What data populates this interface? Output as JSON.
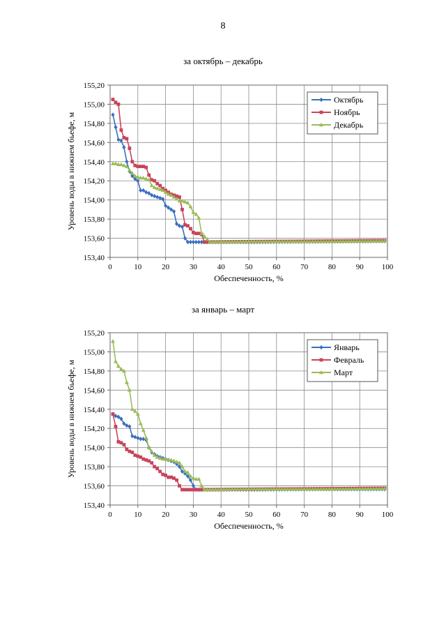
{
  "page": {
    "number": "8"
  },
  "chart_data": [
    {
      "type": "line",
      "title": "за октябрь – декабрь",
      "xlabel": "Обеспеченность, %",
      "ylabel": "Уровень воды в нижнем бьефе, м",
      "xlim": [
        0,
        100
      ],
      "ylim": [
        153.4,
        155.2
      ],
      "xticks": [
        "0",
        "10",
        "20",
        "30",
        "40",
        "50",
        "60",
        "70",
        "80",
        "90",
        "100"
      ],
      "yticks": [
        "153,40",
        "153,60",
        "153,80",
        "154,00",
        "154,20",
        "154,40",
        "154,60",
        "154,80",
        "155,00",
        "155,20"
      ],
      "grid": true,
      "legend_position": "top-right",
      "series": [
        {
          "name": "Октябрь",
          "color": "#3a6fbf",
          "marker": "diamond",
          "points": [
            [
              1,
              154.89
            ],
            [
              2,
              154.76
            ],
            [
              3,
              154.63
            ],
            [
              4,
              154.62
            ],
            [
              5,
              154.55
            ],
            [
              6,
              154.4
            ],
            [
              7,
              154.3
            ],
            [
              8,
              154.25
            ],
            [
              9,
              154.22
            ],
            [
              10,
              154.2
            ],
            [
              11,
              154.1
            ],
            [
              12,
              154.1
            ],
            [
              13,
              154.08
            ],
            [
              14,
              154.07
            ],
            [
              15,
              154.05
            ],
            [
              16,
              154.04
            ],
            [
              17,
              154.03
            ],
            [
              18,
              154.02
            ],
            [
              19,
              154.01
            ],
            [
              20,
              153.94
            ],
            [
              21,
              153.92
            ],
            [
              22,
              153.9
            ],
            [
              23,
              153.88
            ],
            [
              24,
              153.75
            ],
            [
              25,
              153.73
            ],
            [
              26,
              153.72
            ],
            [
              27,
              153.6
            ],
            [
              28,
              153.56
            ],
            [
              29,
              153.56
            ],
            [
              30,
              153.56
            ],
            [
              31,
              153.56
            ],
            [
              32,
              153.56
            ],
            [
              33,
              153.56
            ],
            [
              34,
              153.56
            ],
            [
              35,
              153.56
            ],
            [
              50,
              153.56
            ],
            [
              75,
              153.565
            ],
            [
              99,
              153.57
            ]
          ]
        },
        {
          "name": "Ноябрь",
          "color": "#c8445a",
          "marker": "square",
          "points": [
            [
              1,
              155.05
            ],
            [
              2,
              155.02
            ],
            [
              3,
              155.0
            ],
            [
              4,
              154.73
            ],
            [
              5,
              154.65
            ],
            [
              6,
              154.64
            ],
            [
              7,
              154.54
            ],
            [
              8,
              154.4
            ],
            [
              9,
              154.36
            ],
            [
              10,
              154.35
            ],
            [
              11,
              154.35
            ],
            [
              12,
              154.35
            ],
            [
              13,
              154.34
            ],
            [
              14,
              154.26
            ],
            [
              15,
              154.21
            ],
            [
              16,
              154.2
            ],
            [
              17,
              154.17
            ],
            [
              18,
              154.15
            ],
            [
              19,
              154.12
            ],
            [
              20,
              154.1
            ],
            [
              21,
              154.08
            ],
            [
              22,
              154.06
            ],
            [
              23,
              154.05
            ],
            [
              24,
              154.04
            ],
            [
              25,
              154.03
            ],
            [
              26,
              153.9
            ],
            [
              27,
              153.74
            ],
            [
              28,
              153.73
            ],
            [
              29,
              153.7
            ],
            [
              30,
              153.66
            ],
            [
              31,
              153.65
            ],
            [
              32,
              153.65
            ],
            [
              33,
              153.64
            ],
            [
              34,
              153.56
            ],
            [
              35,
              153.56
            ],
            [
              50,
              153.565
            ],
            [
              75,
              153.57
            ],
            [
              99,
              153.575
            ]
          ]
        },
        {
          "name": "Декабрь",
          "color": "#9bbb59",
          "marker": "triangle",
          "points": [
            [
              1,
              154.38
            ],
            [
              2,
              154.38
            ],
            [
              3,
              154.37
            ],
            [
              4,
              154.37
            ],
            [
              5,
              154.36
            ],
            [
              6,
              154.35
            ],
            [
              7,
              154.31
            ],
            [
              8,
              154.28
            ],
            [
              9,
              154.25
            ],
            [
              10,
              154.24
            ],
            [
              11,
              154.23
            ],
            [
              12,
              154.23
            ],
            [
              13,
              154.22
            ],
            [
              14,
              154.21
            ],
            [
              15,
              154.15
            ],
            [
              16,
              154.13
            ],
            [
              17,
              154.12
            ],
            [
              18,
              154.11
            ],
            [
              19,
              154.1
            ],
            [
              20,
              154.08
            ],
            [
              21,
              154.06
            ],
            [
              22,
              154.05
            ],
            [
              23,
              154.03
            ],
            [
              24,
              154.01
            ],
            [
              25,
              153.99
            ],
            [
              26,
              153.99
            ],
            [
              27,
              153.98
            ],
            [
              28,
              153.97
            ],
            [
              29,
              153.93
            ],
            [
              30,
              153.87
            ],
            [
              31,
              153.85
            ],
            [
              32,
              153.81
            ],
            [
              33,
              153.65
            ],
            [
              34,
              153.62
            ],
            [
              35,
              153.59
            ],
            [
              36,
              153.56
            ],
            [
              50,
              153.565
            ],
            [
              75,
              153.565
            ],
            [
              99,
              153.57
            ]
          ]
        }
      ]
    },
    {
      "type": "line",
      "title": "за январь – март",
      "xlabel": "Обеспеченность, %",
      "ylabel": "Уровень воды в нижнем бьефе, м",
      "xlim": [
        0,
        100
      ],
      "ylim": [
        153.4,
        155.2
      ],
      "xticks": [
        "0",
        "10",
        "20",
        "30",
        "40",
        "50",
        "60",
        "70",
        "80",
        "90",
        "100"
      ],
      "yticks": [
        "153,40",
        "153,60",
        "153,80",
        "154,00",
        "154,20",
        "154,40",
        "154,60",
        "154,80",
        "155,00",
        "155,20"
      ],
      "grid": true,
      "legend_position": "top-right",
      "series": [
        {
          "name": "Январь",
          "color": "#3a6fbf",
          "marker": "diamond",
          "points": [
            [
              1,
              154.35
            ],
            [
              2,
              154.33
            ],
            [
              3,
              154.32
            ],
            [
              4,
              154.3
            ],
            [
              5,
              154.25
            ],
            [
              6,
              154.23
            ],
            [
              7,
              154.22
            ],
            [
              8,
              154.12
            ],
            [
              9,
              154.11
            ],
            [
              10,
              154.1
            ],
            [
              11,
              154.09
            ],
            [
              12,
              154.09
            ],
            [
              13,
              154.08
            ],
            [
              14,
              154.0
            ],
            [
              15,
              153.95
            ],
            [
              16,
              153.93
            ],
            [
              17,
              153.91
            ],
            [
              18,
              153.9
            ],
            [
              19,
              153.89
            ],
            [
              20,
              153.88
            ],
            [
              21,
              153.87
            ],
            [
              22,
              153.86
            ],
            [
              23,
              153.85
            ],
            [
              24,
              153.83
            ],
            [
              25,
              153.8
            ],
            [
              26,
              153.75
            ],
            [
              27,
              153.73
            ],
            [
              28,
              153.7
            ],
            [
              29,
              153.66
            ],
            [
              30,
              153.6
            ],
            [
              31,
              153.56
            ],
            [
              32,
              153.56
            ],
            [
              33,
              153.56
            ],
            [
              34,
              153.56
            ],
            [
              35,
              153.56
            ],
            [
              50,
              153.56
            ],
            [
              75,
              153.565
            ],
            [
              99,
              153.565
            ]
          ]
        },
        {
          "name": "Февраль",
          "color": "#c8445a",
          "marker": "square",
          "points": [
            [
              1,
              154.35
            ],
            [
              2,
              154.22
            ],
            [
              3,
              154.06
            ],
            [
              4,
              154.05
            ],
            [
              5,
              154.03
            ],
            [
              6,
              153.98
            ],
            [
              7,
              153.96
            ],
            [
              8,
              153.95
            ],
            [
              9,
              153.92
            ],
            [
              10,
              153.91
            ],
            [
              11,
              153.9
            ],
            [
              12,
              153.88
            ],
            [
              13,
              153.87
            ],
            [
              14,
              153.86
            ],
            [
              15,
              153.84
            ],
            [
              16,
              153.8
            ],
            [
              17,
              153.78
            ],
            [
              18,
              153.75
            ],
            [
              19,
              153.72
            ],
            [
              20,
              153.71
            ],
            [
              21,
              153.69
            ],
            [
              22,
              153.69
            ],
            [
              23,
              153.68
            ],
            [
              24,
              153.66
            ],
            [
              25,
              153.6
            ],
            [
              26,
              153.56
            ],
            [
              27,
              153.56
            ],
            [
              28,
              153.56
            ],
            [
              29,
              153.56
            ],
            [
              30,
              153.56
            ],
            [
              31,
              153.56
            ],
            [
              32,
              153.56
            ],
            [
              33,
              153.56
            ],
            [
              50,
              153.565
            ],
            [
              75,
              153.57
            ],
            [
              99,
              153.575
            ]
          ]
        },
        {
          "name": "Март",
          "color": "#9bbb59",
          "marker": "triangle",
          "points": [
            [
              1,
              155.11
            ],
            [
              2,
              154.9
            ],
            [
              3,
              154.85
            ],
            [
              4,
              154.82
            ],
            [
              5,
              154.8
            ],
            [
              6,
              154.68
            ],
            [
              7,
              154.6
            ],
            [
              8,
              154.4
            ],
            [
              9,
              154.38
            ],
            [
              10,
              154.35
            ],
            [
              11,
              154.25
            ],
            [
              12,
              154.18
            ],
            [
              13,
              154.1
            ],
            [
              14,
              154.0
            ],
            [
              15,
              153.96
            ],
            [
              16,
              153.92
            ],
            [
              17,
              153.9
            ],
            [
              18,
              153.89
            ],
            [
              19,
              153.88
            ],
            [
              20,
              153.88
            ],
            [
              21,
              153.87
            ],
            [
              22,
              153.87
            ],
            [
              23,
              153.86
            ],
            [
              24,
              153.85
            ],
            [
              25,
              153.84
            ],
            [
              26,
              153.8
            ],
            [
              27,
              153.75
            ],
            [
              28,
              153.74
            ],
            [
              29,
              153.7
            ],
            [
              30,
              153.68
            ],
            [
              31,
              153.67
            ],
            [
              32,
              153.67
            ],
            [
              33,
              153.6
            ],
            [
              34,
              153.56
            ],
            [
              50,
              153.565
            ],
            [
              75,
              153.565
            ],
            [
              99,
              153.57
            ]
          ]
        }
      ]
    }
  ]
}
